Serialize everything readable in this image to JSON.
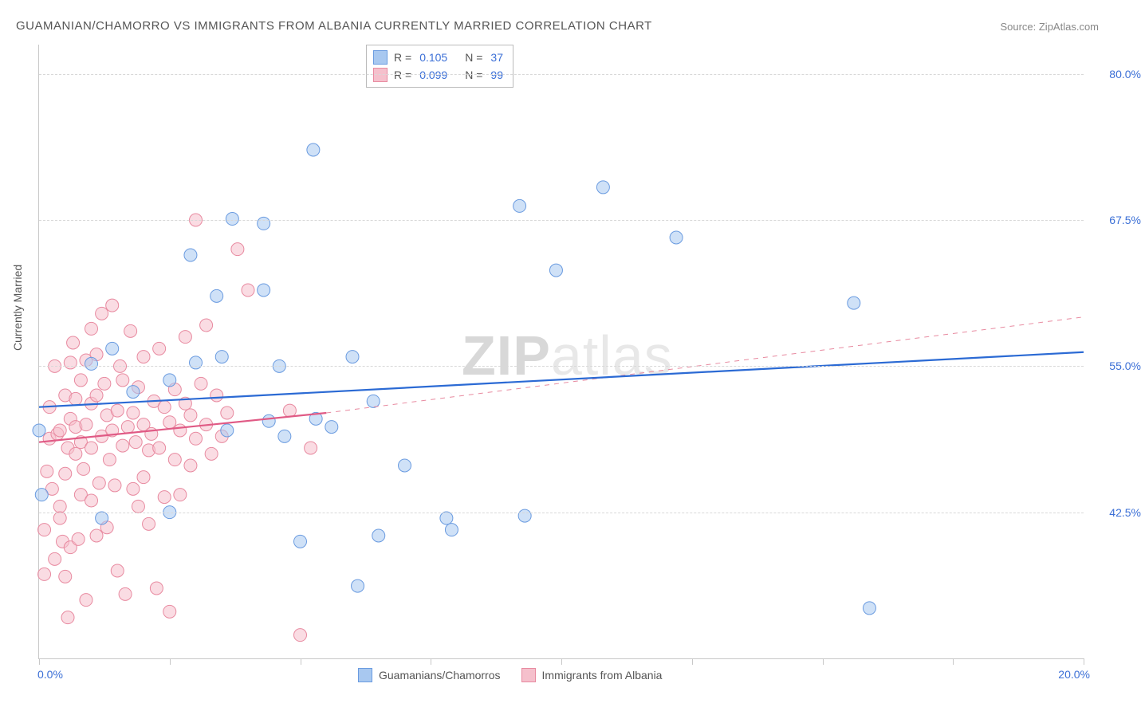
{
  "title": "GUAMANIAN/CHAMORRO VS IMMIGRANTS FROM ALBANIA CURRENTLY MARRIED CORRELATION CHART",
  "source": "Source: ZipAtlas.com",
  "ylabel": "Currently Married",
  "watermark_a": "ZIP",
  "watermark_b": "atlas",
  "chart": {
    "type": "scatter",
    "xlim": [
      0,
      20
    ],
    "ylim": [
      30,
      82.5
    ],
    "ygrid": [
      42.5,
      55.0,
      67.5,
      80.0
    ],
    "ytick_labels": [
      "42.5%",
      "55.0%",
      "67.5%",
      "80.0%"
    ],
    "xtick_left": "0.0%",
    "xtick_right": "20.0%",
    "xtick_positions": [
      0,
      2.5,
      5,
      7.5,
      10,
      12.5,
      15,
      17.5,
      20
    ],
    "background_color": "#ffffff",
    "grid_color": "#d8d8d8",
    "axis_color": "#c8c8c8",
    "tick_label_color": "#3b6fd6",
    "series": [
      {
        "name": "Guamanians/Chamorros",
        "color_fill": "#a8c8f0",
        "color_stroke": "#6a9be0",
        "marker_radius": 8,
        "fill_opacity": 0.55,
        "R": "0.105",
        "N": "37",
        "trend": {
          "color": "#2b6ad4",
          "width": 2.2,
          "x0": 0,
          "y0": 51.5,
          "x1": 20,
          "y1": 56.2
        },
        "points": [
          [
            0.0,
            49.5
          ],
          [
            0.05,
            44.0
          ],
          [
            1.0,
            55.2
          ],
          [
            1.2,
            42.0
          ],
          [
            1.4,
            56.5
          ],
          [
            1.8,
            52.8
          ],
          [
            2.5,
            53.8
          ],
          [
            2.5,
            42.5
          ],
          [
            2.9,
            64.5
          ],
          [
            3.0,
            55.3
          ],
          [
            3.4,
            61.0
          ],
          [
            3.5,
            55.8
          ],
          [
            3.6,
            49.5
          ],
          [
            3.7,
            67.6
          ],
          [
            4.3,
            61.5
          ],
          [
            4.3,
            67.2
          ],
          [
            4.4,
            50.3
          ],
          [
            4.6,
            55.0
          ],
          [
            4.7,
            49.0
          ],
          [
            5.0,
            40.0
          ],
          [
            5.25,
            73.5
          ],
          [
            5.3,
            50.5
          ],
          [
            5.6,
            49.8
          ],
          [
            6.0,
            55.8
          ],
          [
            6.1,
            36.2
          ],
          [
            6.4,
            52.0
          ],
          [
            6.5,
            40.5
          ],
          [
            7.0,
            46.5
          ],
          [
            7.8,
            42.0
          ],
          [
            7.9,
            41.0
          ],
          [
            9.2,
            68.7
          ],
          [
            9.3,
            42.2
          ],
          [
            9.9,
            63.2
          ],
          [
            10.8,
            70.3
          ],
          [
            12.2,
            66.0
          ],
          [
            15.6,
            60.4
          ],
          [
            15.9,
            34.3
          ]
        ]
      },
      {
        "name": "Immigrants from Albania",
        "color_fill": "#f5c0cc",
        "color_stroke": "#e88aa0",
        "marker_radius": 8,
        "fill_opacity": 0.55,
        "R": "0.099",
        "N": "99",
        "trend_solid": {
          "color": "#e05a85",
          "width": 2.2,
          "x0": 0,
          "y0": 48.5,
          "x1": 5.5,
          "y1": 51.0
        },
        "trend_dash": {
          "color": "#e88aa0",
          "width": 1,
          "x0": 5.5,
          "y0": 51.0,
          "x1": 20,
          "y1": 59.2
        },
        "points": [
          [
            0.1,
            41.0
          ],
          [
            0.1,
            37.2
          ],
          [
            0.15,
            46.0
          ],
          [
            0.2,
            48.8
          ],
          [
            0.2,
            51.5
          ],
          [
            0.25,
            44.5
          ],
          [
            0.3,
            55.0
          ],
          [
            0.3,
            38.5
          ],
          [
            0.35,
            49.2
          ],
          [
            0.4,
            43.0
          ],
          [
            0.4,
            49.5
          ],
          [
            0.4,
            42.0
          ],
          [
            0.45,
            40.0
          ],
          [
            0.5,
            52.5
          ],
          [
            0.5,
            45.8
          ],
          [
            0.5,
            37.0
          ],
          [
            0.55,
            33.5
          ],
          [
            0.55,
            48.0
          ],
          [
            0.6,
            55.3
          ],
          [
            0.6,
            50.5
          ],
          [
            0.6,
            39.5
          ],
          [
            0.65,
            57.0
          ],
          [
            0.7,
            47.5
          ],
          [
            0.7,
            49.8
          ],
          [
            0.7,
            52.2
          ],
          [
            0.75,
            40.2
          ],
          [
            0.8,
            44.0
          ],
          [
            0.8,
            53.8
          ],
          [
            0.8,
            48.5
          ],
          [
            0.85,
            46.2
          ],
          [
            0.9,
            55.5
          ],
          [
            0.9,
            50.0
          ],
          [
            0.9,
            35.0
          ],
          [
            1.0,
            51.8
          ],
          [
            1.0,
            43.5
          ],
          [
            1.0,
            58.2
          ],
          [
            1.0,
            48.0
          ],
          [
            1.1,
            40.5
          ],
          [
            1.1,
            56.0
          ],
          [
            1.1,
            52.5
          ],
          [
            1.15,
            45.0
          ],
          [
            1.2,
            49.0
          ],
          [
            1.2,
            59.5
          ],
          [
            1.25,
            53.5
          ],
          [
            1.3,
            50.8
          ],
          [
            1.3,
            41.2
          ],
          [
            1.35,
            47.0
          ],
          [
            1.4,
            60.2
          ],
          [
            1.4,
            49.5
          ],
          [
            1.45,
            44.8
          ],
          [
            1.5,
            51.2
          ],
          [
            1.5,
            37.5
          ],
          [
            1.55,
            55.0
          ],
          [
            1.6,
            48.2
          ],
          [
            1.6,
            53.8
          ],
          [
            1.65,
            35.5
          ],
          [
            1.7,
            49.8
          ],
          [
            1.75,
            58.0
          ],
          [
            1.8,
            51.0
          ],
          [
            1.8,
            44.5
          ],
          [
            1.85,
            48.5
          ],
          [
            1.9,
            43.0
          ],
          [
            1.9,
            53.2
          ],
          [
            2.0,
            50.0
          ],
          [
            2.0,
            45.5
          ],
          [
            2.0,
            55.8
          ],
          [
            2.1,
            41.5
          ],
          [
            2.1,
            47.8
          ],
          [
            2.15,
            49.2
          ],
          [
            2.2,
            52.0
          ],
          [
            2.25,
            36.0
          ],
          [
            2.3,
            56.5
          ],
          [
            2.3,
            48.0
          ],
          [
            2.4,
            51.5
          ],
          [
            2.4,
            43.8
          ],
          [
            2.5,
            50.2
          ],
          [
            2.5,
            34.0
          ],
          [
            2.6,
            47.0
          ],
          [
            2.6,
            53.0
          ],
          [
            2.7,
            49.5
          ],
          [
            2.7,
            44.0
          ],
          [
            2.8,
            57.5
          ],
          [
            2.8,
            51.8
          ],
          [
            2.9,
            46.5
          ],
          [
            2.9,
            50.8
          ],
          [
            3.0,
            67.5
          ],
          [
            3.0,
            48.8
          ],
          [
            3.1,
            53.5
          ],
          [
            3.2,
            50.0
          ],
          [
            3.2,
            58.5
          ],
          [
            3.3,
            47.5
          ],
          [
            3.4,
            52.5
          ],
          [
            3.5,
            49.0
          ],
          [
            3.6,
            51.0
          ],
          [
            3.8,
            65.0
          ],
          [
            4.0,
            61.5
          ],
          [
            4.8,
            51.2
          ],
          [
            5.0,
            32.0
          ],
          [
            5.2,
            48.0
          ]
        ]
      }
    ]
  },
  "legend_bottom": [
    "Guamanians/Chamorros",
    "Immigrants from Albania"
  ],
  "stats_labels": {
    "R": "R  =",
    "N": "N  ="
  }
}
